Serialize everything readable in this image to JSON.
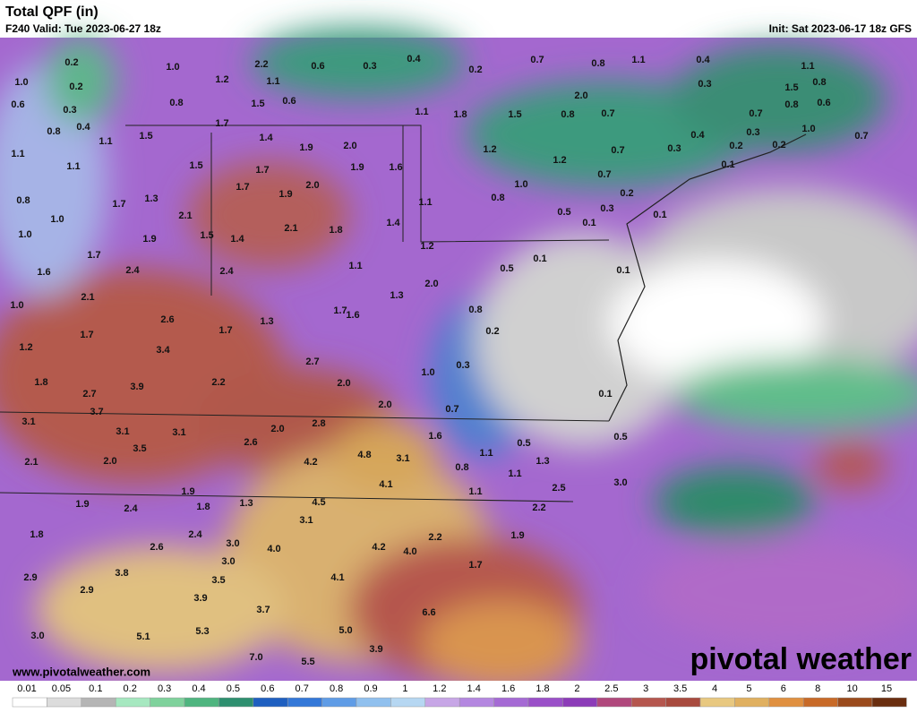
{
  "header": {
    "title": "Total QPF (in)",
    "valid": "F240 Valid: Tue 2023-06-27 18z",
    "init": "Init: Sat 2023-06-17 18z GFS"
  },
  "map": {
    "labels": [
      "1.0",
      "0.6",
      "0.8",
      "1.1",
      "0.2",
      "0.2",
      "0.3",
      "0.4",
      "1.0",
      "0.8",
      "1.2",
      "2.2",
      "1.1",
      "1.5",
      "0.6",
      "0.6",
      "0.3",
      "0.4",
      "0.2",
      "0.7",
      "0.8",
      "1.1",
      "0.4",
      "0.3",
      "1.1",
      "0.8",
      "1.5",
      "0.8",
      "0.6",
      "0.7",
      "0.3",
      "0.2",
      "0.2",
      "1.0",
      "0.7",
      "0.1",
      "0.3",
      "0.4",
      "0.7",
      "0.7",
      "0.2",
      "0.3",
      "0.1",
      "0.5",
      "2.0",
      "0.8",
      "0.7",
      "1.5",
      "1.8",
      "1.1",
      "1.2",
      "1.2",
      "1.0",
      "0.8",
      "1.1",
      "1.4",
      "1.6",
      "1.9",
      "2.0",
      "1.9",
      "1.4",
      "1.7",
      "1.5",
      "1.1",
      "1.1",
      "1.5",
      "1.7",
      "1.7",
      "2.0",
      "1.9",
      "1.3",
      "1.7",
      "2.1",
      "0.8",
      "1.0",
      "1.0",
      "1.9",
      "1.5",
      "1.4",
      "2.1",
      "1.8",
      "1.2",
      "0.5",
      "0.1",
      "0.1",
      "0.1",
      "1.7",
      "1.6",
      "2.4",
      "2.4",
      "1.1",
      "2.0",
      "1.3",
      "2.1",
      "1.0",
      "2.6",
      "1.3",
      "1.7",
      "1.6",
      "0.8",
      "0.2",
      "1.7",
      "1.7",
      "3.4",
      "1.2",
      "2.7",
      "1.0",
      "0.3",
      "1.8",
      "3.9",
      "2.2",
      "2.0",
      "0.1",
      "2.7",
      "2.0",
      "0.7",
      "3.7",
      "3.1",
      "3.1",
      "3.1",
      "2.0",
      "2.8",
      "1.6",
      "2.6",
      "3.5",
      "0.5",
      "0.5",
      "2.1",
      "2.0",
      "1.1",
      "4.8",
      "3.1",
      "4.2",
      "0.8",
      "1.3",
      "1.1",
      "3.0",
      "4.1",
      "2.5",
      "1.1",
      "1.9",
      "1.9",
      "2.4",
      "1.8",
      "1.3",
      "4.5",
      "3.1",
      "2.2",
      "1.8",
      "2.4",
      "2.6",
      "3.0",
      "4.0",
      "4.2",
      "4.0",
      "2.2",
      "1.9",
      "1.7",
      "3.0",
      "3.8",
      "2.9",
      "3.5",
      "4.1",
      "2.9",
      "3.9",
      "3.7",
      "6.6",
      "5.0",
      "5.3",
      "5.1",
      "3.0",
      "3.9",
      "7.0",
      "5.5"
    ]
  },
  "footer": {
    "website": "www.pivotalweather.com",
    "brand": "pivotal weather"
  },
  "colorbar": {
    "labels": [
      "0.01",
      "0.05",
      "0.1",
      "0.2",
      "0.3",
      "0.4",
      "0.5",
      "0.6",
      "0.7",
      "0.8",
      "0.9",
      "1",
      "1.2",
      "1.4",
      "1.6",
      "1.8",
      "2",
      "2.5",
      "3",
      "3.5",
      "4",
      "5",
      "6",
      "8",
      "10",
      "15"
    ],
    "colors": [
      "#ffffff",
      "#dcdcdc",
      "#b5b5b5",
      "#a6e8c0",
      "#7fd29c",
      "#4fb57f",
      "#2e8f6f",
      "#1f5fc0",
      "#3478d8",
      "#5f9ce6",
      "#90c0ee",
      "#b6d7f2",
      "#c7a6e6",
      "#b487e0",
      "#a56ad4",
      "#9a50c8",
      "#8c3cb8",
      "#b0487c",
      "#b5564e",
      "#a84a3e",
      "#e8c880",
      "#e0b060",
      "#e09040",
      "#c86a28",
      "#9a4a1c",
      "#6a2e10"
    ]
  }
}
